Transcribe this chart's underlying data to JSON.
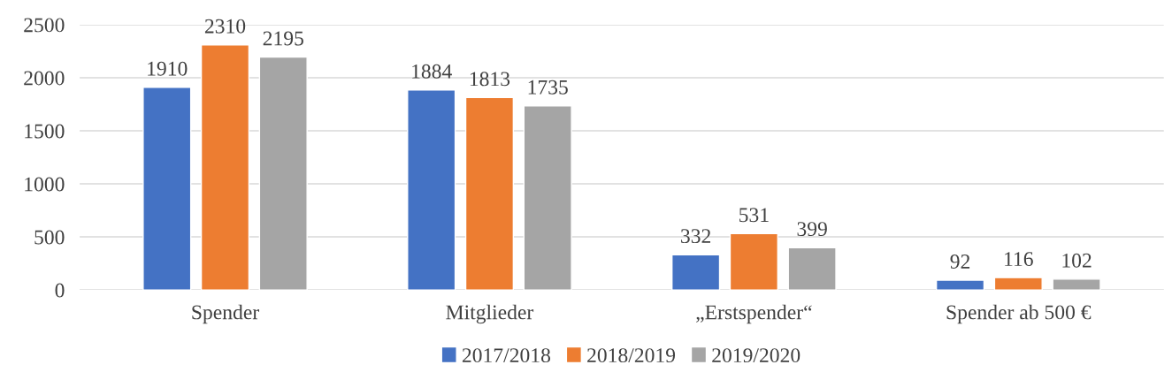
{
  "chart_data": {
    "type": "bar",
    "categories": [
      "Spender",
      "Mitglieder",
      "„Erstspender“",
      "Spender ab 500 €"
    ],
    "series": [
      {
        "name": "2017/2018",
        "color": "#4472c4",
        "values": [
          1910,
          1884,
          332,
          92
        ]
      },
      {
        "name": "2018/2019",
        "color": "#ed7d31",
        "values": [
          2310,
          1813,
          531,
          116
        ]
      },
      {
        "name": "2019/2020",
        "color": "#a5a5a5",
        "values": [
          2195,
          1735,
          399,
          102
        ]
      }
    ],
    "ylim": [
      0,
      2500
    ],
    "yticks": [
      0,
      500,
      1000,
      1500,
      2000,
      2500
    ],
    "grid": "y",
    "legend": "bottom",
    "data_labels": true
  }
}
